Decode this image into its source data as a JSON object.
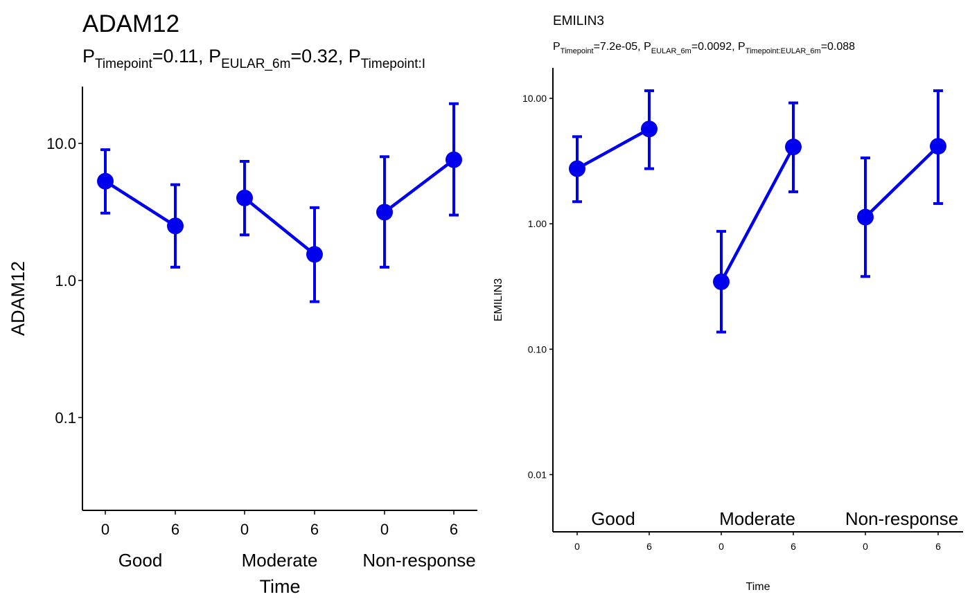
{
  "chart_data": [
    {
      "type": "line",
      "title": "ADAM12",
      "subtitle_parts": [
        {
          "text": "P",
          "sub": "Timepoint",
          "value": "=0.11, "
        },
        {
          "text": "P",
          "sub": "EULAR_6m",
          "value": "=0.32, "
        },
        {
          "text": "P",
          "sub": "Timepoint:I",
          "value": ""
        }
      ],
      "xlabel": "Time",
      "ylabel": "ADAM12",
      "yscale": "log",
      "ylim": [
        0.021,
        26
      ],
      "yticks": [
        0.1,
        1.0,
        10.0
      ],
      "ytick_labels": [
        "0.1",
        "1.0",
        "10.0"
      ],
      "groups_position": "below-axis",
      "groups": [
        {
          "name": "Good",
          "points": [
            {
              "x": "0",
              "y": 5.3,
              "lo": 3.1,
              "hi": 9.0
            },
            {
              "x": "6",
              "y": 2.5,
              "lo": 1.25,
              "hi": 5.0
            }
          ]
        },
        {
          "name": "Moderate",
          "points": [
            {
              "x": "0",
              "y": 4.0,
              "lo": 2.15,
              "hi": 7.4
            },
            {
              "x": "6",
              "y": 1.55,
              "lo": 0.7,
              "hi": 3.4
            }
          ]
        },
        {
          "name": "Non-response",
          "points": [
            {
              "x": "0",
              "y": 3.15,
              "lo": 1.25,
              "hi": 8.0
            },
            {
              "x": "6",
              "y": 7.6,
              "lo": 3.0,
              "hi": 19.5
            }
          ]
        }
      ],
      "color": "#0000ee",
      "grid": false
    },
    {
      "type": "line",
      "title": "EMILIN3",
      "subtitle_parts": [
        {
          "text": "P",
          "sub": "Timepoint",
          "value": "=7.2e-05, "
        },
        {
          "text": "P",
          "sub": "EULAR_6m",
          "value": "=0.0092, "
        },
        {
          "text": "P",
          "sub": "Timepoint:EULAR_6m",
          "value": "=0.088"
        }
      ],
      "xlabel": "Time",
      "ylabel": "EMILIN3",
      "yscale": "log",
      "ylim": [
        0.0035,
        17.5
      ],
      "yticks": [
        0.01,
        0.1,
        1.0,
        10.0
      ],
      "ytick_labels": [
        "0.01",
        "0.10",
        "1.00",
        "10.00"
      ],
      "groups_position": "inside-bottom",
      "groups": [
        {
          "name": "Good",
          "points": [
            {
              "x": "0",
              "y": 2.75,
              "lo": 1.5,
              "hi": 4.95
            },
            {
              "x": "6",
              "y": 5.7,
              "lo": 2.75,
              "hi": 11.5
            }
          ]
        },
        {
          "name": "Moderate",
          "points": [
            {
              "x": "0",
              "y": 0.345,
              "lo": 0.137,
              "hi": 0.87
            },
            {
              "x": "6",
              "y": 4.1,
              "lo": 1.8,
              "hi": 9.2
            }
          ]
        },
        {
          "name": "Non-response",
          "points": [
            {
              "x": "0",
              "y": 1.13,
              "lo": 0.38,
              "hi": 3.35
            },
            {
              "x": "6",
              "y": 4.15,
              "lo": 1.45,
              "hi": 11.5
            }
          ]
        }
      ],
      "color": "#0000ee",
      "grid": false
    }
  ]
}
